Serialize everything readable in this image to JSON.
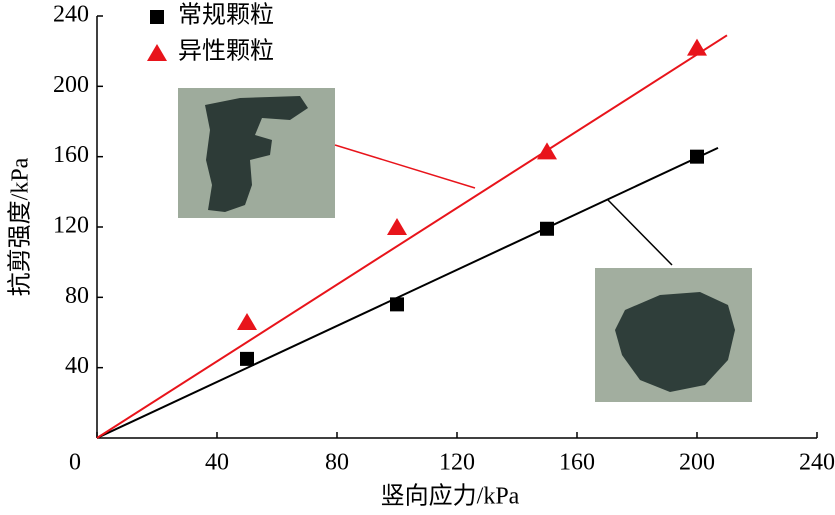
{
  "chart_data": {
    "type": "scatter",
    "xlabel": "竖向应力/kPa",
    "ylabel": "抗剪强度/kPa",
    "xlim": [
      0,
      240
    ],
    "ylim": [
      0,
      240
    ],
    "xticks": [
      0,
      40,
      80,
      120,
      160,
      200,
      240
    ],
    "yticks": [
      40,
      80,
      120,
      160,
      200,
      240
    ],
    "legend": "upper left",
    "series": [
      {
        "name": "常规颗粒",
        "color": "#000000",
        "marker": "square",
        "x": [
          50,
          100,
          150,
          200
        ],
        "values": [
          45,
          76,
          119,
          160
        ],
        "fit": {
          "x": [
            0,
            207
          ],
          "y": [
            0,
            165
          ]
        }
      },
      {
        "name": "异性颗粒",
        "color": "#e8141b",
        "marker": "triangle",
        "x": [
          50,
          100,
          150,
          200
        ],
        "values": [
          66,
          120,
          163,
          222
        ],
        "fit": {
          "x": [
            0,
            210
          ],
          "y": [
            0,
            229
          ]
        }
      }
    ]
  }
}
